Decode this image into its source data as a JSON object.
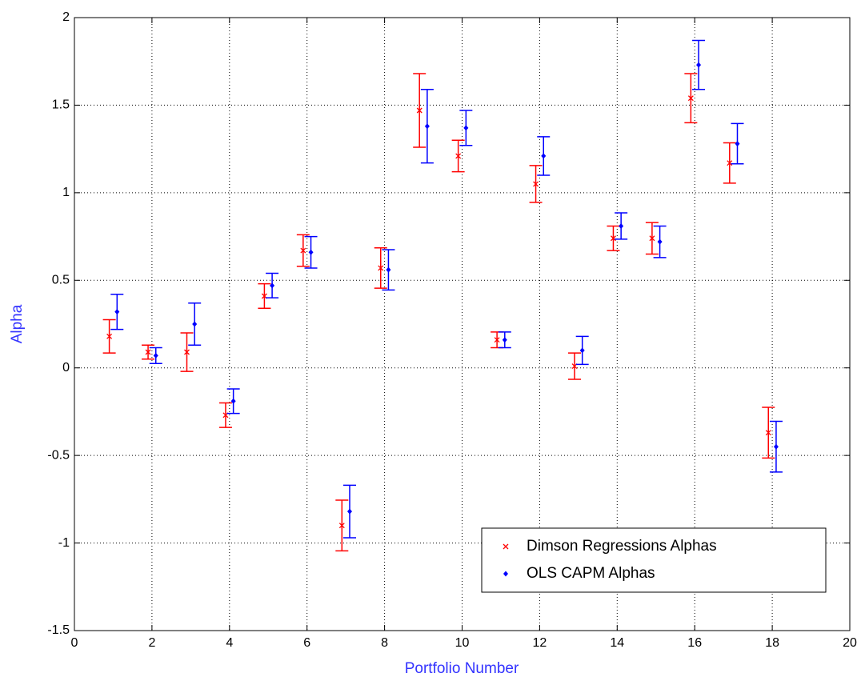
{
  "chart_data": {
    "type": "errorbar",
    "xlabel": "Portfolio Number",
    "ylabel": "Alpha",
    "xlim": [
      0,
      20
    ],
    "xticks": [
      0,
      2,
      4,
      6,
      8,
      10,
      12,
      14,
      16,
      18,
      20
    ],
    "ylim": [
      -1.5,
      2
    ],
    "yticks": [
      -1.5,
      -1,
      -0.5,
      0,
      0.5,
      1,
      1.5,
      2
    ],
    "grid": true,
    "legend": "lower right",
    "series": [
      {
        "name": "Dimson Regressions Alphas",
        "color": "#ff0000",
        "marker": "x",
        "x": [
          0.9,
          1.9,
          2.9,
          3.9,
          4.9,
          5.9,
          6.9,
          7.9,
          8.9,
          9.9,
          10.9,
          11.9,
          12.9,
          13.9,
          14.9,
          15.9,
          16.9,
          17.9
        ],
        "values": [
          0.18,
          0.09,
          0.09,
          -0.27,
          0.41,
          0.67,
          -0.9,
          0.57,
          1.47,
          1.21,
          0.16,
          1.05,
          0.01,
          0.74,
          0.74,
          1.54,
          1.17,
          -0.37
        ],
        "errors": [
          0.095,
          0.04,
          0.11,
          0.07,
          0.07,
          0.09,
          0.145,
          0.115,
          0.21,
          0.09,
          0.045,
          0.105,
          0.075,
          0.07,
          0.09,
          0.14,
          0.115,
          0.145
        ]
      },
      {
        "name": "OLS CAPM Alphas",
        "color": "#0000ff",
        "marker": "dot",
        "x": [
          1.1,
          2.1,
          3.1,
          4.1,
          5.1,
          6.1,
          7.1,
          8.1,
          9.1,
          10.1,
          11.1,
          12.1,
          13.1,
          14.1,
          15.1,
          16.1,
          17.1,
          18.1
        ],
        "values": [
          0.32,
          0.07,
          0.25,
          -0.19,
          0.47,
          0.66,
          -0.82,
          0.56,
          1.38,
          1.37,
          0.16,
          1.21,
          0.1,
          0.81,
          0.72,
          1.73,
          1.28,
          -0.45
        ],
        "errors": [
          0.1,
          0.045,
          0.12,
          0.07,
          0.07,
          0.09,
          0.15,
          0.115,
          0.21,
          0.1,
          0.045,
          0.11,
          0.08,
          0.075,
          0.09,
          0.14,
          0.115,
          0.145
        ]
      }
    ]
  }
}
